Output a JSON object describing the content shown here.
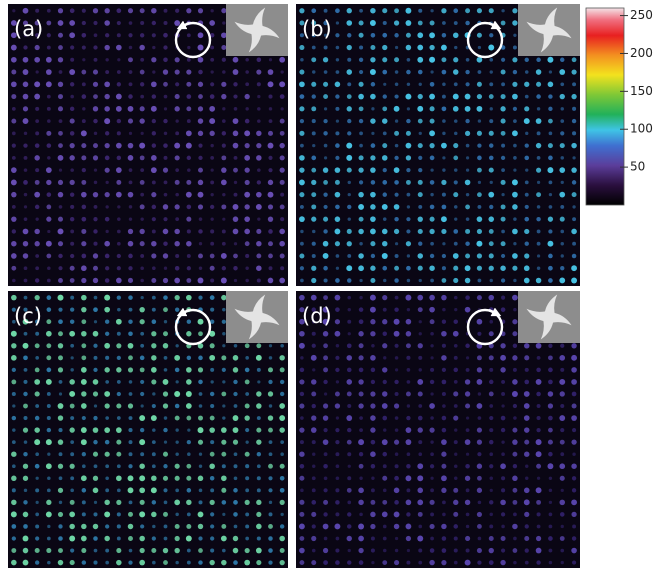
{
  "panels": [
    {
      "label": "(a)"
    },
    {
      "label": "(b)"
    },
    {
      "label": "(c)"
    },
    {
      "label": "(d)"
    }
  ],
  "colorbar": {
    "lim": [
      0,
      260
    ],
    "ticks": [
      50,
      100,
      150,
      200,
      250
    ]
  }
}
